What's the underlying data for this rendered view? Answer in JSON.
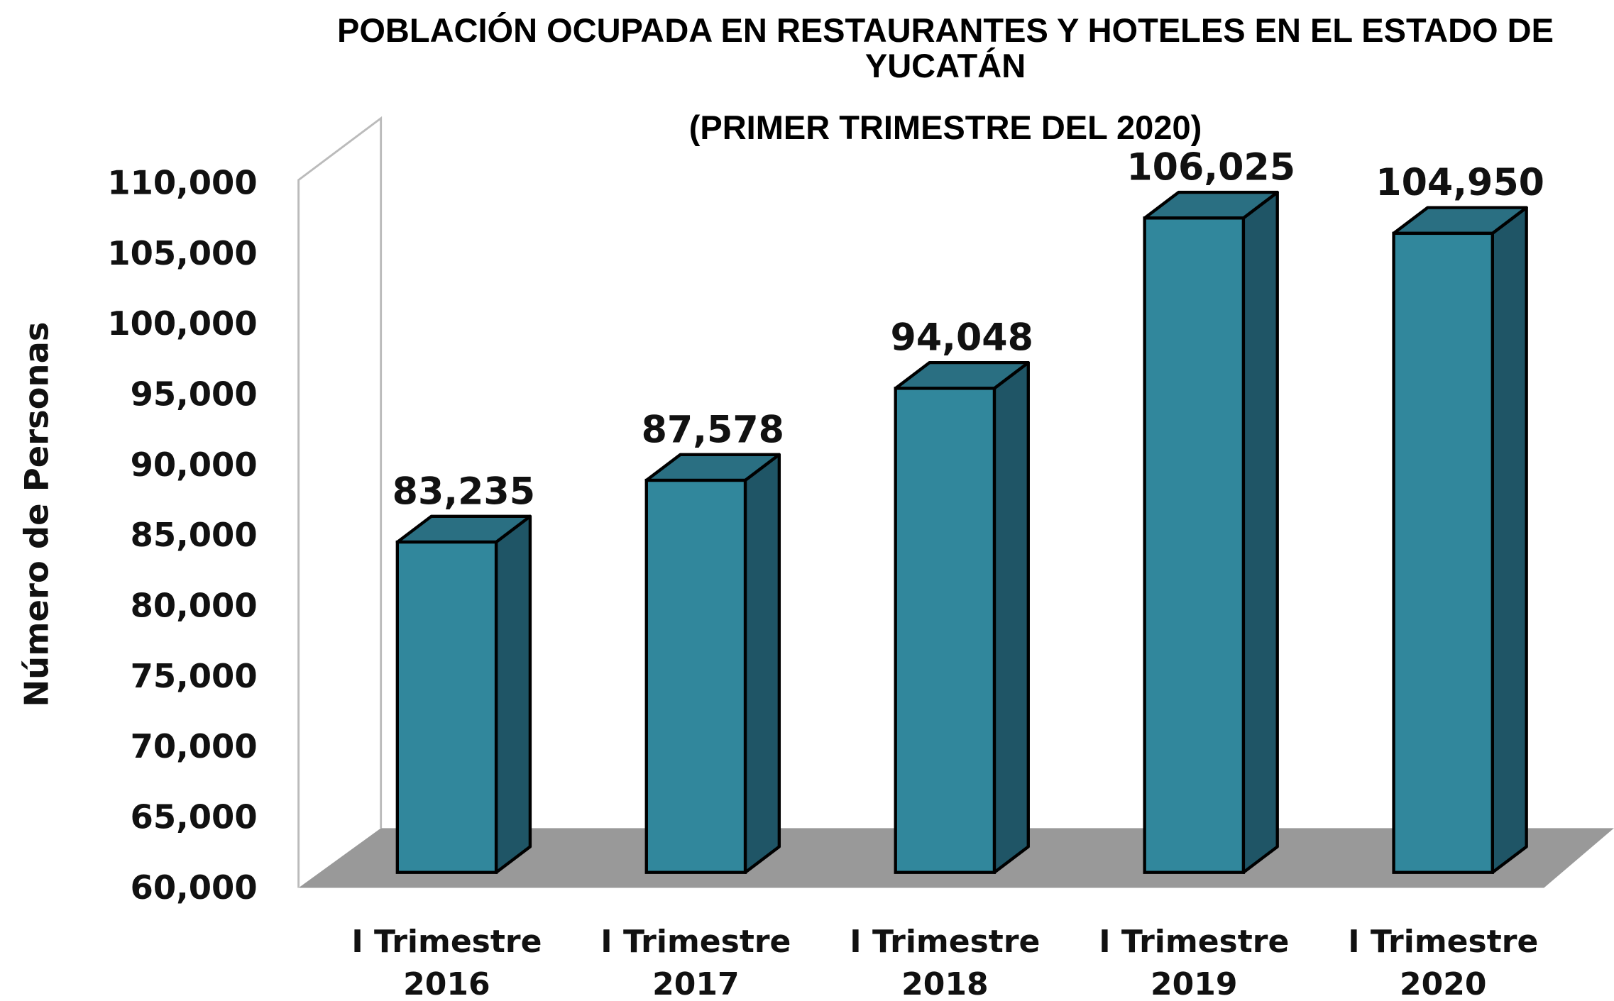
{
  "chart_data": {
    "type": "bar3d",
    "title": "POBLACIÓN OCUPADA EN RESTAURANTES Y HOTELES EN EL ESTADO DE YUCATÁN",
    "subtitle": "(PRIMER TRIMESTRE DEL 2020)",
    "y_label": "Número de Personas",
    "categories": [
      "I Trimestre 2016",
      "I Trimestre 2017",
      "I Trimestre 2018",
      "I Trimestre 2019",
      "I Trimestre 2020"
    ],
    "values": [
      83235,
      87578,
      94048,
      106025,
      104950
    ],
    "value_labels": [
      "83,235",
      "87,578",
      "94,048",
      "106,025",
      "104,950"
    ],
    "color": "#31879c",
    "ylim": [
      60000,
      110000
    ],
    "yticks": [
      {
        "value": 60000,
        "label": "60,000"
      },
      {
        "value": 65000,
        "label": "65,000"
      },
      {
        "value": 70000,
        "label": "70,000"
      },
      {
        "value": 75000,
        "label": "75,000"
      },
      {
        "value": 80000,
        "label": "80,000"
      },
      {
        "value": 85000,
        "label": "85,000"
      },
      {
        "value": 90000,
        "label": "90,000"
      },
      {
        "value": 95000,
        "label": "95,000"
      },
      {
        "value": 100000,
        "label": "100,000"
      },
      {
        "value": 105000,
        "label": "105,000"
      },
      {
        "value": 110000,
        "label": "110,000"
      }
    ],
    "grid": false
  }
}
